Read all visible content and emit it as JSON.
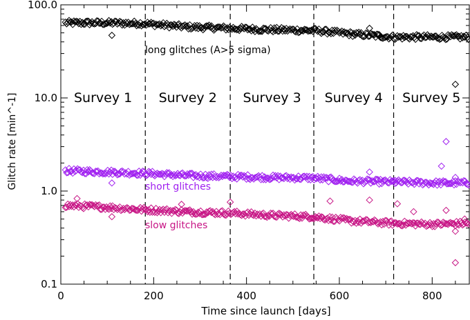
{
  "chart_data": {
    "type": "scatter",
    "title": "",
    "xlabel": "Time since launch [days]",
    "ylabel": "Glitch rate [min^-1]",
    "xlim": [
      0,
      880
    ],
    "ylim": [
      0.1,
      100
    ],
    "yscale": "log",
    "xticks": [
      "0",
      "200",
      "400",
      "600",
      "800"
    ],
    "yticks": [
      "0.1",
      "1.0",
      "10.0",
      "100.0"
    ],
    "grid": false,
    "marker": "diamond-open",
    "survey_boundaries": [
      182,
      365,
      545,
      717
    ],
    "survey_labels": [
      "Survey 1",
      "Survey 2",
      "Survey 3",
      "Survey 4",
      "Survey 5"
    ],
    "series": [
      {
        "label": "long glitches   (A>5 sigma)",
        "color": "#000000",
        "trend": [
          [
            10,
            64
          ],
          [
            100,
            64
          ],
          [
            180,
            63
          ],
          [
            270,
            58
          ],
          [
            365,
            56
          ],
          [
            450,
            54
          ],
          [
            545,
            53
          ],
          [
            620,
            49
          ],
          [
            717,
            45
          ],
          [
            800,
            45
          ],
          [
            880,
            45
          ]
        ],
        "outliers": [
          [
            110,
            47
          ],
          [
            665,
            56
          ],
          [
            850,
            14
          ],
          [
            870,
            45
          ]
        ]
      },
      {
        "label": "short glitches",
        "color": "#a020f0",
        "trend": [
          [
            10,
            1.65
          ],
          [
            100,
            1.6
          ],
          [
            180,
            1.55
          ],
          [
            270,
            1.47
          ],
          [
            365,
            1.43
          ],
          [
            450,
            1.4
          ],
          [
            545,
            1.38
          ],
          [
            620,
            1.28
          ],
          [
            717,
            1.25
          ],
          [
            800,
            1.22
          ],
          [
            880,
            1.22
          ]
        ],
        "outliers": [
          [
            110,
            1.22
          ],
          [
            665,
            1.6
          ],
          [
            720,
            1.3
          ],
          [
            820,
            1.85
          ],
          [
            830,
            3.4
          ],
          [
            850,
            1.4
          ]
        ]
      },
      {
        "label": "slow glitches",
        "color": "#c71585",
        "trend": [
          [
            10,
            0.7
          ],
          [
            100,
            0.67
          ],
          [
            180,
            0.63
          ],
          [
            270,
            0.6
          ],
          [
            365,
            0.58
          ],
          [
            450,
            0.55
          ],
          [
            545,
            0.53
          ],
          [
            620,
            0.48
          ],
          [
            717,
            0.45
          ],
          [
            800,
            0.44
          ],
          [
            880,
            0.45
          ]
        ],
        "outliers": [
          [
            35,
            0.83
          ],
          [
            110,
            0.53
          ],
          [
            260,
            0.72
          ],
          [
            365,
            0.76
          ],
          [
            580,
            0.78
          ],
          [
            665,
            0.8
          ],
          [
            725,
            0.73
          ],
          [
            760,
            0.6
          ],
          [
            830,
            0.62
          ],
          [
            850,
            0.37
          ],
          [
            850,
            0.17
          ],
          [
            870,
            0.5
          ]
        ]
      }
    ]
  }
}
